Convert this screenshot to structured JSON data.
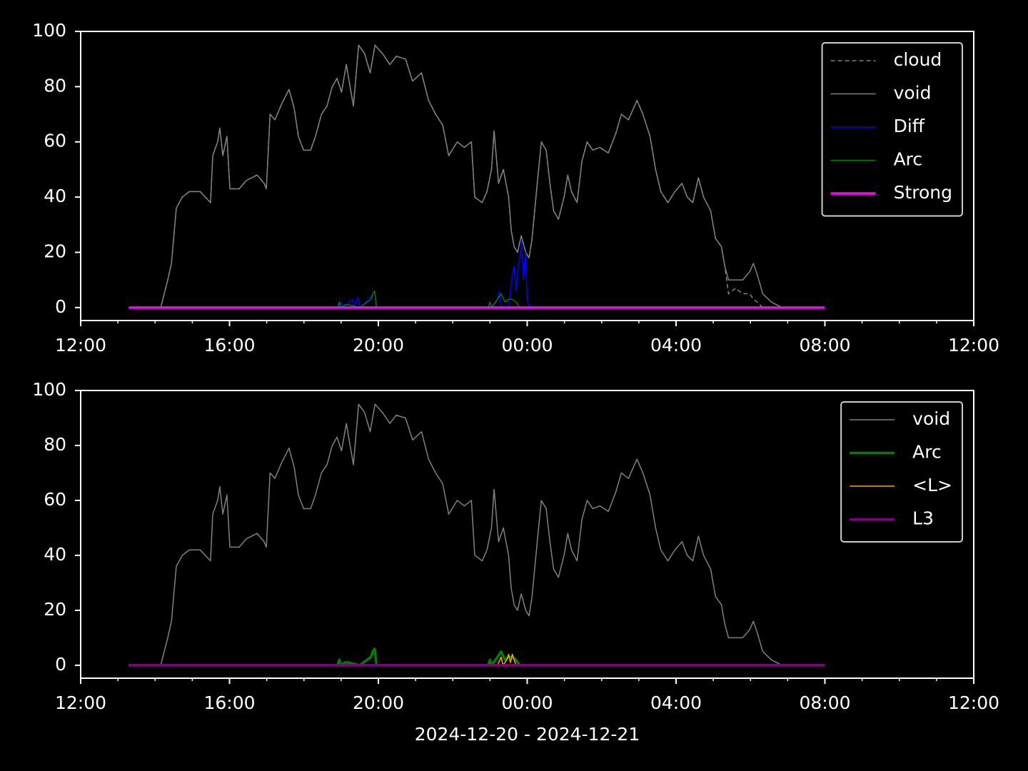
{
  "chart_data": [
    {
      "type": "line",
      "xlim": [
        12,
        36
      ],
      "ylim": [
        -4.7,
        100
      ],
      "xticks": [
        {
          "value": 12,
          "label": "12:00"
        },
        {
          "value": 16,
          "label": "16:00"
        },
        {
          "value": 20,
          "label": "20:00"
        },
        {
          "value": 24,
          "label": "00:00"
        },
        {
          "value": 28,
          "label": "04:00"
        },
        {
          "value": 32,
          "label": "08:00"
        },
        {
          "value": 36,
          "label": "12:00"
        }
      ],
      "xminorticks": [
        13,
        14,
        15,
        17,
        18,
        19,
        21,
        22,
        23,
        25,
        26,
        27,
        29,
        30,
        31,
        33,
        34,
        35
      ],
      "yticks": [
        0,
        20,
        40,
        60,
        80,
        100
      ],
      "legend": "upper right",
      "x": [
        13.29,
        14.15,
        14.34,
        14.44,
        14.57,
        14.73,
        14.92,
        15.21,
        15.49,
        15.55,
        15.68,
        15.74,
        15.82,
        15.93,
        16.01,
        16.26,
        16.45,
        16.74,
        16.93,
        16.99,
        17.09,
        17.22,
        17.41,
        17.6,
        17.74,
        17.85,
        17.99,
        18.18,
        18.31,
        18.47,
        18.62,
        18.76,
        18.89,
        19.01,
        19.14,
        19.24,
        19.33,
        19.47,
        19.63,
        19.78,
        19.91,
        20.11,
        20.31,
        20.48,
        20.73,
        20.92,
        21.16,
        21.35,
        21.54,
        21.73,
        21.89,
        22.12,
        22.31,
        22.5,
        22.59,
        22.79,
        22.92,
        23.04,
        23.11,
        23.23,
        23.36,
        23.5,
        23.57,
        23.65,
        23.74,
        23.84,
        23.96,
        24.05,
        24.13,
        24.27,
        24.38,
        24.51,
        24.61,
        24.71,
        24.84,
        24.99,
        25.09,
        25.19,
        25.34,
        25.47,
        25.61,
        25.76,
        25.95,
        26.18,
        26.38,
        26.53,
        26.72,
        26.95,
        27.11,
        27.3,
        27.45,
        27.59,
        27.78,
        27.97,
        28.16,
        28.3,
        28.45,
        28.6,
        28.74,
        28.93,
        29.06,
        29.22,
        29.31,
        29.41,
        29.6,
        29.79,
        29.98,
        30.08,
        30.18,
        30.33,
        30.56,
        30.85,
        31.98
      ],
      "series": [
        {
          "name": "cloud",
          "color": "#808080",
          "linewidth": 1.5,
          "linestyle": "dashed",
          "values": [
            0,
            0,
            10,
            16,
            36,
            40,
            42,
            42,
            38,
            55,
            60,
            65,
            55,
            62,
            43,
            43,
            46,
            48,
            45,
            43,
            70,
            68,
            74,
            79,
            72,
            62,
            57,
            57,
            62,
            70,
            73,
            80,
            83,
            78,
            88,
            80,
            73,
            95,
            92,
            85,
            95,
            92,
            88,
            91,
            90,
            82,
            85,
            75,
            70,
            66,
            55,
            60,
            58,
            60,
            40,
            38,
            42,
            50,
            64,
            45,
            50,
            40,
            28,
            22,
            20,
            26,
            20,
            18,
            25,
            45,
            60,
            57,
            45,
            35,
            32,
            40,
            48,
            42,
            38,
            53,
            60,
            57,
            58,
            56,
            63,
            70,
            68,
            75,
            70,
            62,
            50,
            42,
            38,
            42,
            45,
            40,
            38,
            47,
            40,
            35,
            25,
            22,
            15,
            5,
            7,
            5,
            5,
            3,
            2,
            0,
            0,
            0,
            0
          ]
        },
        {
          "name": "void",
          "color": "#808080",
          "linewidth": 1.5,
          "values": [
            0,
            0,
            10,
            16,
            36,
            40,
            42,
            42,
            38,
            55,
            60,
            65,
            55,
            62,
            43,
            43,
            46,
            48,
            45,
            43,
            70,
            68,
            74,
            79,
            72,
            62,
            57,
            57,
            62,
            70,
            73,
            80,
            83,
            78,
            88,
            80,
            73,
            95,
            92,
            85,
            95,
            92,
            88,
            91,
            90,
            82,
            85,
            75,
            70,
            66,
            55,
            60,
            58,
            60,
            40,
            38,
            42,
            50,
            64,
            45,
            50,
            40,
            28,
            22,
            20,
            26,
            20,
            18,
            25,
            45,
            60,
            57,
            45,
            35,
            32,
            40,
            48,
            42,
            38,
            53,
            60,
            57,
            58,
            56,
            63,
            70,
            68,
            75,
            70,
            62,
            50,
            42,
            38,
            42,
            45,
            40,
            38,
            47,
            40,
            35,
            25,
            22,
            15,
            10,
            10,
            10,
            13,
            16,
            12,
            5,
            2,
            0,
            0
          ]
        },
        {
          "name": "Diff",
          "color": "#0000ff",
          "linewidth": 1.5,
          "x": [
            13.3,
            18.9,
            19.0,
            19.05,
            19.3,
            19.35,
            19.45,
            19.5,
            19.6,
            19.8,
            19.9,
            19.95,
            23.0,
            23.2,
            23.25,
            23.3,
            23.5,
            23.6,
            23.65,
            23.7,
            23.75,
            23.8,
            23.85,
            23.9,
            23.95,
            24.0,
            24.05,
            32
          ],
          "values": [
            0,
            0,
            2,
            0,
            3,
            0,
            4,
            0,
            1,
            4,
            6,
            0,
            0,
            3,
            6,
            0,
            0,
            12,
            15,
            6,
            14,
            18,
            24,
            10,
            20,
            3,
            0,
            0
          ]
        },
        {
          "name": "Arc",
          "color": "#008000",
          "linewidth": 1.5,
          "x": [
            13.3,
            18.9,
            18.95,
            19.0,
            19.1,
            19.2,
            19.5,
            19.6,
            19.7,
            19.8,
            19.85,
            19.9,
            19.95,
            22.95,
            23.0,
            23.05,
            23.2,
            23.3,
            23.4,
            23.5,
            23.6,
            23.7,
            23.8,
            32
          ],
          "values": [
            0,
            0,
            2,
            0,
            1,
            1,
            0,
            1,
            2,
            3,
            5,
            6,
            0,
            0,
            2,
            0,
            3,
            5,
            2,
            3,
            3,
            2,
            0,
            0
          ]
        },
        {
          "name": "Strong",
          "color": "#ff00ff",
          "linewidth": 3.5,
          "x": [
            13.3,
            32
          ],
          "values": [
            0,
            0
          ]
        }
      ]
    },
    {
      "type": "line",
      "xlim": [
        12,
        36
      ],
      "ylim": [
        -4.7,
        100
      ],
      "xticks": [
        {
          "value": 12,
          "label": "12:00"
        },
        {
          "value": 16,
          "label": "16:00"
        },
        {
          "value": 20,
          "label": "20:00"
        },
        {
          "value": 24,
          "label": "00:00"
        },
        {
          "value": 28,
          "label": "04:00"
        },
        {
          "value": 32,
          "label": "08:00"
        },
        {
          "value": 36,
          "label": "12:00"
        }
      ],
      "xminorticks": [
        13,
        14,
        15,
        17,
        18,
        19,
        21,
        22,
        23,
        25,
        26,
        27,
        29,
        30,
        31,
        33,
        34,
        35
      ],
      "yticks": [
        0,
        20,
        40,
        60,
        80,
        100
      ],
      "legend": "upper right",
      "xlabel": "2024-12-20 - 2024-12-21",
      "x": [
        13.29,
        14.15,
        14.34,
        14.44,
        14.57,
        14.73,
        14.92,
        15.21,
        15.49,
        15.55,
        15.68,
        15.74,
        15.82,
        15.93,
        16.01,
        16.26,
        16.45,
        16.74,
        16.93,
        16.99,
        17.09,
        17.22,
        17.41,
        17.6,
        17.74,
        17.85,
        17.99,
        18.18,
        18.31,
        18.47,
        18.62,
        18.76,
        18.89,
        19.01,
        19.14,
        19.24,
        19.33,
        19.47,
        19.63,
        19.78,
        19.91,
        20.11,
        20.31,
        20.48,
        20.73,
        20.92,
        21.16,
        21.35,
        21.54,
        21.73,
        21.89,
        22.12,
        22.31,
        22.5,
        22.59,
        22.79,
        22.92,
        23.04,
        23.11,
        23.23,
        23.36,
        23.5,
        23.57,
        23.65,
        23.74,
        23.84,
        23.96,
        24.05,
        24.13,
        24.27,
        24.38,
        24.51,
        24.61,
        24.71,
        24.84,
        24.99,
        25.09,
        25.19,
        25.34,
        25.47,
        25.61,
        25.76,
        25.95,
        26.18,
        26.38,
        26.53,
        26.72,
        26.95,
        27.11,
        27.3,
        27.45,
        27.59,
        27.78,
        27.97,
        28.16,
        28.3,
        28.45,
        28.6,
        28.74,
        28.93,
        29.06,
        29.22,
        29.31,
        29.41,
        29.6,
        29.79,
        29.98,
        30.08,
        30.18,
        30.33,
        30.56,
        30.85,
        31.98
      ],
      "series": [
        {
          "name": "void",
          "color": "#808080",
          "linewidth": 1.5,
          "values": [
            0,
            0,
            10,
            16,
            36,
            40,
            42,
            42,
            38,
            55,
            60,
            65,
            55,
            62,
            43,
            43,
            46,
            48,
            45,
            43,
            70,
            68,
            74,
            79,
            72,
            62,
            57,
            57,
            62,
            70,
            73,
            80,
            83,
            78,
            88,
            80,
            73,
            95,
            92,
            85,
            95,
            92,
            88,
            91,
            90,
            82,
            85,
            75,
            70,
            66,
            55,
            60,
            58,
            60,
            40,
            38,
            42,
            50,
            64,
            45,
            50,
            40,
            28,
            22,
            20,
            26,
            20,
            18,
            25,
            45,
            60,
            57,
            45,
            35,
            32,
            40,
            48,
            42,
            38,
            53,
            60,
            57,
            58,
            56,
            63,
            70,
            68,
            75,
            70,
            62,
            50,
            42,
            38,
            42,
            45,
            40,
            38,
            47,
            40,
            35,
            25,
            22,
            15,
            10,
            10,
            10,
            13,
            16,
            12,
            5,
            2,
            0,
            0
          ]
        },
        {
          "name": "Arc",
          "color": "#008000",
          "linewidth": 3.5,
          "x": [
            13.3,
            18.9,
            18.95,
            19.0,
            19.1,
            19.2,
            19.5,
            19.6,
            19.7,
            19.8,
            19.85,
            19.9,
            19.95,
            22.95,
            23.0,
            23.05,
            23.2,
            23.3,
            23.4,
            23.5,
            23.6,
            23.7,
            23.8,
            32
          ],
          "values": [
            0,
            0,
            2,
            0,
            1,
            1,
            0,
            1,
            2,
            3,
            5,
            6,
            0,
            0,
            2,
            0,
            3,
            5,
            2,
            3,
            3,
            2,
            0,
            0
          ]
        },
        {
          "name": "<L>",
          "color": "#ffa500",
          "linewidth": 1.5,
          "x": [
            13.3,
            23.2,
            23.3,
            23.35,
            23.45,
            23.5,
            23.55,
            23.6,
            23.65,
            23.7,
            32
          ],
          "values": [
            0,
            0,
            3,
            0,
            2,
            4,
            1,
            4,
            2,
            0,
            0
          ]
        },
        {
          "name": "L3",
          "color": "#800080",
          "linewidth": 3.5,
          "x": [
            13.3,
            32
          ],
          "values": [
            0,
            0
          ]
        }
      ]
    }
  ]
}
